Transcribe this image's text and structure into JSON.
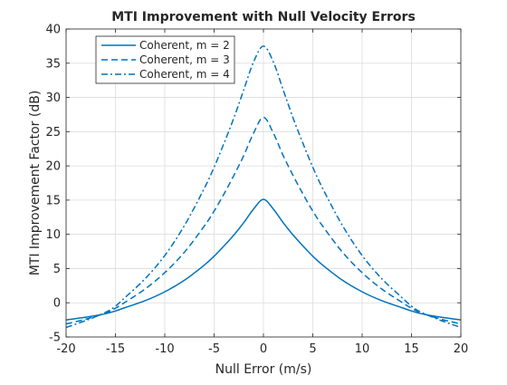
{
  "chart_data": {
    "type": "line",
    "title": "MTI Improvement with Null Velocity Errors",
    "xlabel": "Null Error (m/s)",
    "ylabel": "MTI Improvement Factor (dB)",
    "xlim": [
      -20,
      20
    ],
    "ylim": [
      -5,
      40
    ],
    "xticks": [
      "-20",
      "-15",
      "-10",
      "-5",
      "0",
      "5",
      "10",
      "15",
      "20"
    ],
    "yticks": [
      "-5",
      "0",
      "5",
      "10",
      "15",
      "20",
      "25",
      "30",
      "35",
      "40"
    ],
    "grid": true,
    "legend_position": "top-left",
    "line_color": "#0072BD",
    "x": [
      -20,
      -18,
      -16,
      -15,
      -14,
      -12,
      -10,
      -8,
      -6,
      -5,
      -4,
      -3,
      -2,
      -1,
      0,
      1,
      2,
      3,
      4,
      5,
      6,
      8,
      10,
      12,
      14,
      15,
      16,
      18,
      20
    ],
    "series": [
      {
        "name": "Coherent, m = 2",
        "line_style": "solid",
        "values": [
          -2.5,
          -2.1,
          -1.6,
          -1.2,
          -0.7,
          0.3,
          1.6,
          3.3,
          5.5,
          6.8,
          8.3,
          9.9,
          11.7,
          13.7,
          15.1,
          13.7,
          11.7,
          9.9,
          8.3,
          6.8,
          5.5,
          3.3,
          1.6,
          0.3,
          -0.7,
          -1.2,
          -1.6,
          -2.1,
          -2.5
        ]
      },
      {
        "name": "Coherent, m = 3",
        "line_style": "dashed",
        "values": [
          -3.1,
          -2.4,
          -1.5,
          -0.8,
          0.1,
          2.0,
          4.4,
          7.4,
          11.2,
          13.4,
          15.9,
          18.6,
          21.5,
          24.8,
          27.1,
          24.8,
          21.5,
          18.6,
          15.9,
          13.4,
          11.2,
          7.4,
          4.4,
          2.0,
          0.1,
          -0.8,
          -1.5,
          -2.4,
          -3.1
        ]
      },
      {
        "name": "Coherent, m = 4",
        "line_style": "dash-dot",
        "values": [
          -3.6,
          -2.6,
          -1.4,
          -0.5,
          0.8,
          3.5,
          6.9,
          11.3,
          16.7,
          19.8,
          23.3,
          27.0,
          31.1,
          35.2,
          37.5,
          35.2,
          31.1,
          27.0,
          23.3,
          19.8,
          16.7,
          11.3,
          6.9,
          3.5,
          0.8,
          -0.5,
          -1.4,
          -2.6,
          -3.6
        ]
      }
    ]
  }
}
